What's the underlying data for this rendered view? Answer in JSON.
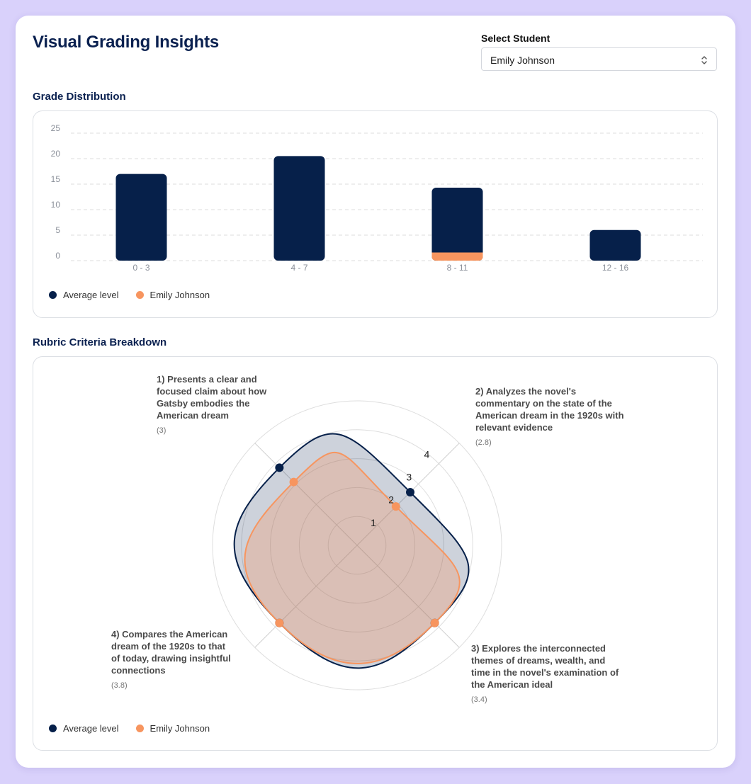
{
  "title": "Visual Grading Insights",
  "student_select": {
    "label": "Select Student",
    "selected": "Emily Johnson",
    "icon": "chevron-up-down-icon"
  },
  "colors": {
    "average": "#06204a",
    "student": "#f7955f",
    "grid": "#dedede"
  },
  "grade_distribution": {
    "section_title": "Grade Distribution",
    "legend": [
      "Average level",
      "Emily Johnson"
    ]
  },
  "rubric": {
    "section_title": "Rubric Criteria Breakdown",
    "legend": [
      "Average level",
      "Emily Johnson"
    ]
  },
  "chart_data": [
    {
      "type": "bar",
      "categories": [
        "0 - 3",
        "4 - 7",
        "8 - 11",
        "12 - 16"
      ],
      "series": [
        {
          "name": "Average level",
          "values": [
            17,
            20.5,
            14.3,
            6
          ]
        },
        {
          "name": "Emily Johnson",
          "values": [
            0,
            0,
            1.6,
            0
          ]
        }
      ],
      "yticks": [
        0,
        5,
        10,
        15,
        20,
        25
      ],
      "ylim": [
        0,
        25
      ],
      "grid": true,
      "legend": "bottom-left"
    },
    {
      "type": "radar",
      "axes": [
        {
          "label": "1) Presents a clear and focused claim about how Gatsby embodies the American dream",
          "value_label": "(3)"
        },
        {
          "label": "2) Analyzes the novel's commentary on the state of the American dream in the 1920s with relevant evidence",
          "value_label": "(2.8)"
        },
        {
          "label": "3) Explores the interconnected themes of dreams, wealth, and time in the novel's examination of the American ideal",
          "value_label": "(3.4)"
        },
        {
          "label": "4) Compares the American dream of the 1920s to that of today, drawing insightful connections",
          "value_label": "(3.8)"
        }
      ],
      "series": [
        {
          "name": "Average level",
          "values": [
            3.8,
            2.6,
            3.8,
            3.8
          ]
        },
        {
          "name": "Emily Johnson",
          "values": [
            3.1,
            1.9,
            3.8,
            3.8
          ]
        }
      ],
      "ticks": [
        1,
        2,
        3,
        4
      ],
      "rlim": [
        0,
        5
      ],
      "legend": "bottom-left"
    }
  ]
}
